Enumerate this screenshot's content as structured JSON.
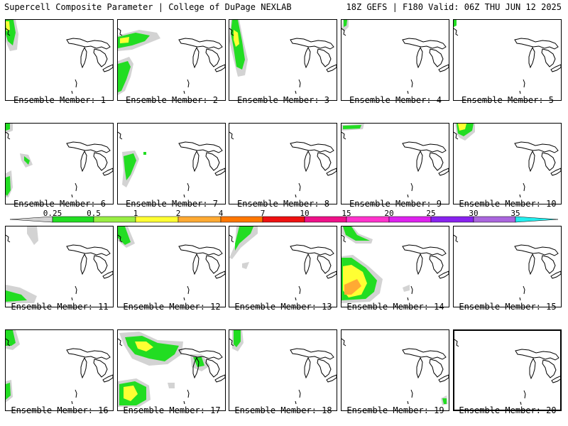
{
  "header": {
    "left": "Supercell Composite Parameter | College of DuPage NEXLAB",
    "right": "18Z GEFS | F180 Valid: 06Z THU JUN 12 2025"
  },
  "panels": [
    {
      "label": "Ensemble Member: 1"
    },
    {
      "label": "Ensemble Member: 2"
    },
    {
      "label": "Ensemble Member: 3"
    },
    {
      "label": "Ensemble Member: 4"
    },
    {
      "label": "Ensemble Member: 5"
    },
    {
      "label": "Ensemble Member: 6"
    },
    {
      "label": "Ensemble Member: 7"
    },
    {
      "label": "Ensemble Member: 8"
    },
    {
      "label": "Ensemble Member: 9"
    },
    {
      "label": "Ensemble Member: 10"
    },
    {
      "label": "Ensemble Member: 11"
    },
    {
      "label": "Ensemble Member: 12"
    },
    {
      "label": "Ensemble Member: 13"
    },
    {
      "label": "Ensemble Member: 14"
    },
    {
      "label": "Ensemble Member: 15"
    },
    {
      "label": "Ensemble Member: 16"
    },
    {
      "label": "Ensemble Member: 17"
    },
    {
      "label": "Ensemble Member: 18"
    },
    {
      "label": "Ensemble Member: 19"
    },
    {
      "label": "Ensemble Member: 20"
    }
  ],
  "colorbar": {
    "ticks": [
      "0.25",
      "0.5",
      "1",
      "2",
      "4",
      "7",
      "10",
      "15",
      "20",
      "25",
      "30",
      "35"
    ],
    "colors": [
      "#d3d3d3",
      "#22dd22",
      "#99ee44",
      "#ffff33",
      "#ffaa33",
      "#ff7700",
      "#ee1111",
      "#ee1188",
      "#ff33cc",
      "#dd22ee",
      "#8822ee",
      "#aa66dd",
      "#22eeee"
    ]
  }
}
